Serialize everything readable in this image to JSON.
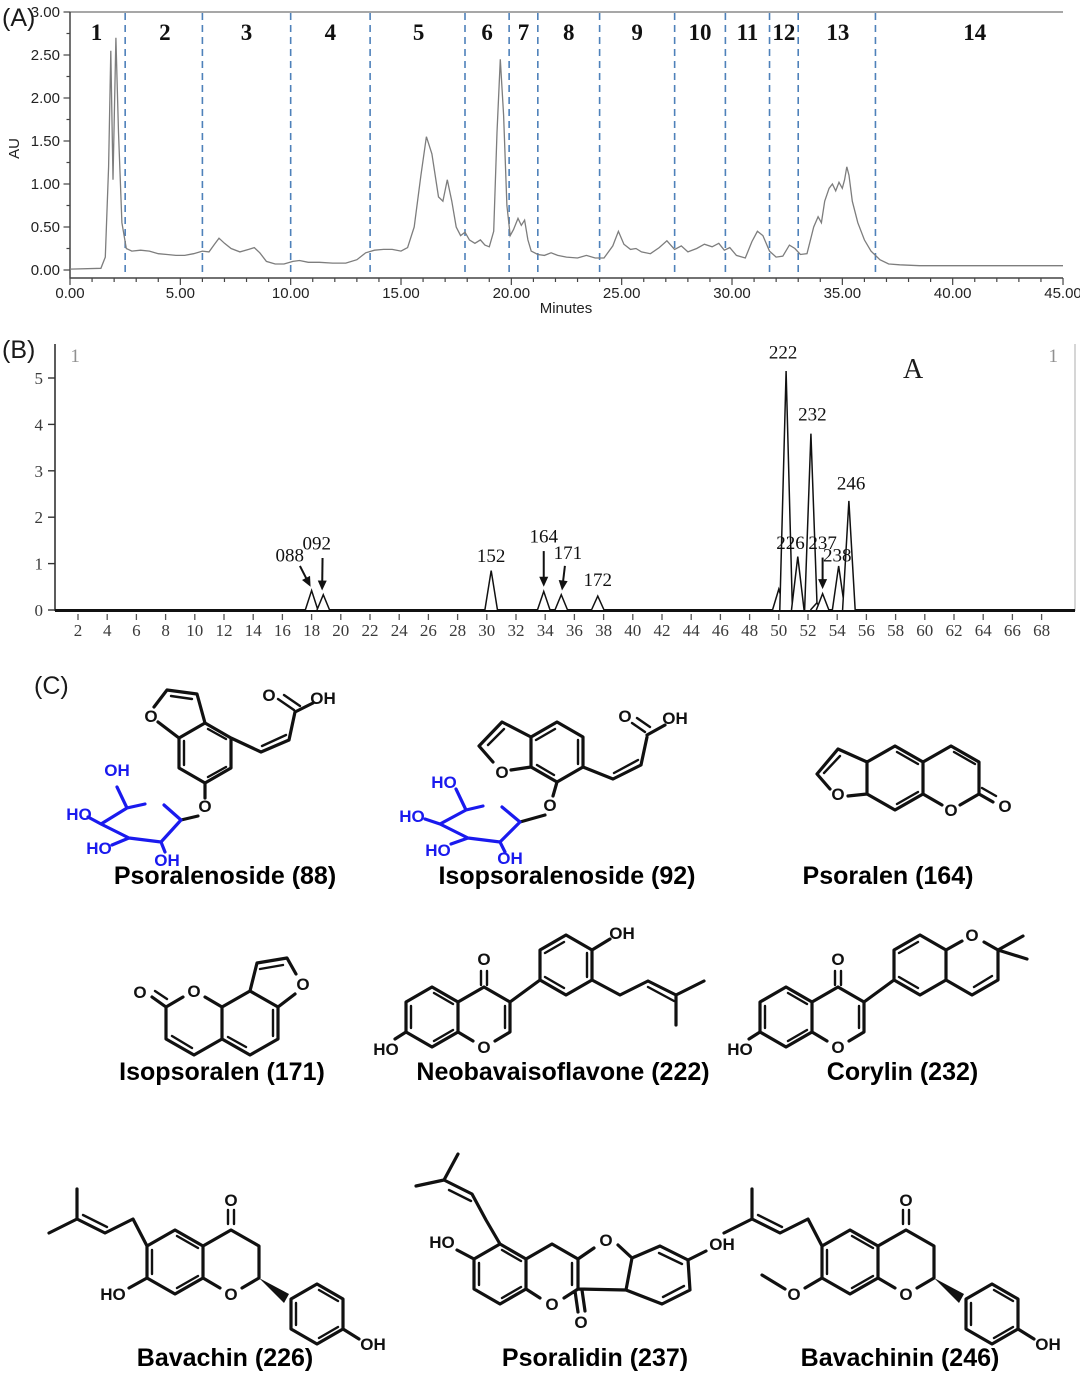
{
  "panels": {
    "a_label": "(A)",
    "b_label": "(B)",
    "c_label": "(C)"
  },
  "panel_a": {
    "xlabel": "Minutes",
    "ylabel": "AU"
  },
  "colors": {
    "divider_blue": "#4e81ba",
    "structure_blue": "#1a1aee",
    "trace_gray": "#7d7d7d"
  },
  "chart_data": [
    {
      "type": "line",
      "panel": "A",
      "title": "",
      "xlabel": "Minutes",
      "ylabel": "AU",
      "xlim": [
        0,
        45
      ],
      "ylim": [
        0,
        3
      ],
      "x_tick_step": 5,
      "y_tick_step": 0.5,
      "grid": false,
      "fraction_dividers_min": [
        2.5,
        6.0,
        10.0,
        13.6,
        17.9,
        19.9,
        21.2,
        24.0,
        27.4,
        29.7,
        31.7,
        33.0,
        36.5
      ],
      "fractions": [
        {
          "label": "1",
          "x": 1.2
        },
        {
          "label": "2",
          "x": 4.3
        },
        {
          "label": "3",
          "x": 8.0
        },
        {
          "label": "4",
          "x": 11.8
        },
        {
          "label": "5",
          "x": 15.8
        },
        {
          "label": "6",
          "x": 18.9
        },
        {
          "label": "7",
          "x": 20.55
        },
        {
          "label": "8",
          "x": 22.6
        },
        {
          "label": "9",
          "x": 25.7
        },
        {
          "label": "10",
          "x": 28.55
        },
        {
          "label": "11",
          "x": 30.7
        },
        {
          "label": "12",
          "x": 32.35
        },
        {
          "label": "13",
          "x": 34.8
        },
        {
          "label": "14",
          "x": 41.0
        }
      ],
      "trace": [
        [
          0,
          0.01
        ],
        [
          1.4,
          0.02
        ],
        [
          1.6,
          0.15
        ],
        [
          1.75,
          1.2
        ],
        [
          1.85,
          2.55
        ],
        [
          1.95,
          1.05
        ],
        [
          2.08,
          2.7
        ],
        [
          2.2,
          1.6
        ],
        [
          2.35,
          0.55
        ],
        [
          2.55,
          0.25
        ],
        [
          2.8,
          0.22
        ],
        [
          3.2,
          0.23
        ],
        [
          3.6,
          0.22
        ],
        [
          4.0,
          0.19
        ],
        [
          4.4,
          0.18
        ],
        [
          4.8,
          0.17
        ],
        [
          5.2,
          0.17
        ],
        [
          5.6,
          0.19
        ],
        [
          6.0,
          0.22
        ],
        [
          6.3,
          0.21
        ],
        [
          6.55,
          0.3
        ],
        [
          6.75,
          0.37
        ],
        [
          7.0,
          0.31
        ],
        [
          7.3,
          0.25
        ],
        [
          7.7,
          0.21
        ],
        [
          8.1,
          0.24
        ],
        [
          8.35,
          0.26
        ],
        [
          8.6,
          0.2
        ],
        [
          8.9,
          0.1
        ],
        [
          9.3,
          0.07
        ],
        [
          9.7,
          0.07
        ],
        [
          10.1,
          0.1
        ],
        [
          10.4,
          0.11
        ],
        [
          10.8,
          0.09
        ],
        [
          11.3,
          0.09
        ],
        [
          11.9,
          0.08
        ],
        [
          12.5,
          0.08
        ],
        [
          13.0,
          0.12
        ],
        [
          13.4,
          0.2
        ],
        [
          13.8,
          0.23
        ],
        [
          14.2,
          0.24
        ],
        [
          14.6,
          0.24
        ],
        [
          15.0,
          0.22
        ],
        [
          15.3,
          0.26
        ],
        [
          15.6,
          0.5
        ],
        [
          15.9,
          1.1
        ],
        [
          16.15,
          1.55
        ],
        [
          16.4,
          1.35
        ],
        [
          16.7,
          0.85
        ],
        [
          16.9,
          0.8
        ],
        [
          17.1,
          1.05
        ],
        [
          17.3,
          0.8
        ],
        [
          17.5,
          0.5
        ],
        [
          17.7,
          0.4
        ],
        [
          17.9,
          0.44
        ],
        [
          18.1,
          0.35
        ],
        [
          18.35,
          0.31
        ],
        [
          18.6,
          0.35
        ],
        [
          18.8,
          0.29
        ],
        [
          19.0,
          0.27
        ],
        [
          19.2,
          0.45
        ],
        [
          19.35,
          1.6
        ],
        [
          19.5,
          2.45
        ],
        [
          19.65,
          1.8
        ],
        [
          19.8,
          0.75
        ],
        [
          19.95,
          0.4
        ],
        [
          20.1,
          0.47
        ],
        [
          20.3,
          0.6
        ],
        [
          20.45,
          0.52
        ],
        [
          20.6,
          0.58
        ],
        [
          20.75,
          0.35
        ],
        [
          20.9,
          0.22
        ],
        [
          21.2,
          0.18
        ],
        [
          21.5,
          0.17
        ],
        [
          21.8,
          0.2
        ],
        [
          22.1,
          0.17
        ],
        [
          22.5,
          0.15
        ],
        [
          23.0,
          0.14
        ],
        [
          23.4,
          0.17
        ],
        [
          23.8,
          0.14
        ],
        [
          24.2,
          0.14
        ],
        [
          24.6,
          0.28
        ],
        [
          24.85,
          0.45
        ],
        [
          25.1,
          0.3
        ],
        [
          25.4,
          0.24
        ],
        [
          25.65,
          0.25
        ],
        [
          25.9,
          0.21
        ],
        [
          26.3,
          0.19
        ],
        [
          26.7,
          0.26
        ],
        [
          27.05,
          0.34
        ],
        [
          27.4,
          0.24
        ],
        [
          27.7,
          0.28
        ],
        [
          28.0,
          0.21
        ],
        [
          28.4,
          0.25
        ],
        [
          28.75,
          0.3
        ],
        [
          29.1,
          0.27
        ],
        [
          29.4,
          0.31
        ],
        [
          29.65,
          0.23
        ],
        [
          29.9,
          0.26
        ],
        [
          30.2,
          0.17
        ],
        [
          30.6,
          0.14
        ],
        [
          30.9,
          0.33
        ],
        [
          31.15,
          0.45
        ],
        [
          31.4,
          0.4
        ],
        [
          31.7,
          0.22
        ],
        [
          32.0,
          0.15
        ],
        [
          32.3,
          0.16
        ],
        [
          32.6,
          0.29
        ],
        [
          32.85,
          0.25
        ],
        [
          33.1,
          0.18
        ],
        [
          33.4,
          0.19
        ],
        [
          33.7,
          0.5
        ],
        [
          33.9,
          0.62
        ],
        [
          34.05,
          0.55
        ],
        [
          34.2,
          0.8
        ],
        [
          34.4,
          0.95
        ],
        [
          34.55,
          1.0
        ],
        [
          34.7,
          0.92
        ],
        [
          34.85,
          1.02
        ],
        [
          35.0,
          0.95
        ],
        [
          35.1,
          1.05
        ],
        [
          35.2,
          1.2
        ],
        [
          35.3,
          1.1
        ],
        [
          35.45,
          0.8
        ],
        [
          35.7,
          0.55
        ],
        [
          36.0,
          0.35
        ],
        [
          36.3,
          0.22
        ],
        [
          36.7,
          0.12
        ],
        [
          37.1,
          0.07
        ],
        [
          37.6,
          0.06
        ],
        [
          38.5,
          0.05
        ],
        [
          40,
          0.05
        ],
        [
          42,
          0.05
        ],
        [
          45,
          0.05
        ]
      ]
    },
    {
      "type": "line",
      "panel": "B",
      "title": "",
      "xlabel": "",
      "ylabel": "",
      "xlim": [
        0,
        70
      ],
      "ylim": [
        0,
        5.5
      ],
      "x_tick_min": 2,
      "x_tick_max": 68,
      "x_tick_step": 2,
      "y_ticks": [
        0,
        1,
        2,
        3,
        4,
        5
      ],
      "grid": false,
      "corner_marks": [
        {
          "text": "1",
          "x": 1.8,
          "y": 5.35,
          "color": "#909090",
          "size": 19
        },
        {
          "text": "A",
          "x": 59.2,
          "y": 5.0,
          "color": "#1a1a1a",
          "size": 28
        },
        {
          "text": "1",
          "x": 68.8,
          "y": 5.35,
          "color": "#909090",
          "size": 19
        }
      ],
      "peaks": [
        {
          "label": "088",
          "x": 18.0,
          "h": 0.42
        },
        {
          "label": "092",
          "x": 18.8,
          "h": 0.33
        },
        {
          "label": "152",
          "x": 30.3,
          "h": 0.85
        },
        {
          "label": "164",
          "x": 33.9,
          "h": 0.4
        },
        {
          "label": "171",
          "x": 35.1,
          "h": 0.33
        },
        {
          "label": "172",
          "x": 37.6,
          "h": 0.3
        },
        {
          "label": "",
          "x": 50.0,
          "h": 0.45
        },
        {
          "label": "222",
          "x": 50.5,
          "h": 5.15
        },
        {
          "label": "226",
          "x": 51.3,
          "h": 1.15
        },
        {
          "label": "232",
          "x": 52.2,
          "h": 3.8
        },
        {
          "label": "",
          "x": 52.6,
          "h": 0.15
        },
        {
          "label": "237",
          "x": 53.0,
          "h": 0.35
        },
        {
          "label": "238",
          "x": 54.1,
          "h": 0.95
        },
        {
          "label": "246",
          "x": 54.8,
          "h": 2.35
        }
      ],
      "peak_labels": [
        {
          "text": "088",
          "x": 16.5,
          "y": 1.05,
          "arrow": [
            17.2,
            0.95,
            17.93,
            0.5
          ]
        },
        {
          "text": "092",
          "x": 18.35,
          "y": 1.3,
          "arrow": [
            18.75,
            1.12,
            18.72,
            0.42
          ]
        },
        {
          "text": "152",
          "x": 30.3,
          "y": 1.03
        },
        {
          "text": "164",
          "x": 33.9,
          "y": 1.45,
          "arrow": [
            33.9,
            1.27,
            33.9,
            0.5
          ]
        },
        {
          "text": "171",
          "x": 35.55,
          "y": 1.1,
          "arrow": [
            35.35,
            0.95,
            35.15,
            0.42
          ]
        },
        {
          "text": "172",
          "x": 37.6,
          "y": 0.52
        },
        {
          "text": "222",
          "x": 50.3,
          "y": 5.42
        },
        {
          "text": "226",
          "x": 50.8,
          "y": 1.32
        },
        {
          "text": "232",
          "x": 52.3,
          "y": 4.08
        },
        {
          "text": "237",
          "x": 53.0,
          "y": 1.32,
          "arrow": [
            53.0,
            1.13,
            53.0,
            0.45
          ]
        },
        {
          "text": "238",
          "x": 54.0,
          "y": 1.05
        },
        {
          "text": "246",
          "x": 54.95,
          "y": 2.6
        }
      ]
    }
  ],
  "compounds": [
    {
      "caption": "Psoralenoside (88)",
      "atoms": [
        [
          "O",
          96,
          54
        ],
        [
          "O",
          214,
          33
        ],
        [
          "OH",
          268,
          36
        ],
        [
          "O",
          150,
          144
        ],
        [
          "OH",
          62,
          108,
          1
        ],
        [
          "HO",
          24,
          152,
          1
        ],
        [
          "HO",
          44,
          186,
          1
        ],
        [
          "OH",
          112,
          198,
          1
        ]
      ]
    },
    {
      "caption": "Isopsoralenoside (92)",
      "atoms": [
        [
          "O",
          140,
          106
        ],
        [
          "O",
          263,
          50
        ],
        [
          "OH",
          313,
          52
        ],
        [
          "O",
          188,
          139
        ],
        [
          "HO",
          82,
          116,
          1
        ],
        [
          "HO",
          50,
          150,
          1
        ],
        [
          "HO",
          76,
          184,
          1
        ],
        [
          "OH",
          148,
          192,
          1
        ]
      ]
    },
    {
      "caption": "Psoralen (164)",
      "atoms": [
        [
          "O",
          103,
          112
        ],
        [
          "O",
          216,
          128
        ],
        [
          "O",
          270,
          124
        ]
      ]
    },
    {
      "caption": "Isopsoralen (171)",
      "atoms": [
        [
          "O",
          144,
          69
        ],
        [
          "O",
          90,
          70
        ],
        [
          "O",
          253,
          62
        ]
      ]
    },
    {
      "caption": "Neobavaisoflavone (222)",
      "atoms": [
        [
          "O",
          116,
          62
        ],
        [
          "O",
          116,
          150
        ],
        [
          "OH",
          254,
          36
        ],
        [
          "HO",
          18,
          152
        ]
      ]
    },
    {
      "caption": "Corylin (232)",
      "atoms": [
        [
          "O",
          116,
          62
        ],
        [
          "O",
          116,
          150
        ],
        [
          "O",
          250,
          38
        ],
        [
          "HO",
          18,
          152
        ]
      ]
    },
    {
      "caption": "Bavachin (226)",
      "atoms": [
        [
          "O",
          216,
          64
        ],
        [
          "O",
          216,
          158
        ],
        [
          "HO",
          98,
          158
        ],
        [
          "OH",
          358,
          208
        ]
      ]
    },
    {
      "caption": "Psoralidin (237)",
      "atoms": [
        [
          "HO",
          42,
          124
        ],
        [
          "O",
          152,
          186
        ],
        [
          "O",
          181,
          204
        ],
        [
          "O",
          206,
          122
        ],
        [
          "OH",
          322,
          126
        ]
      ]
    },
    {
      "caption": "Bavachinin (246)",
      "atoms": [
        [
          "O",
          216,
          64
        ],
        [
          "O",
          216,
          158
        ],
        [
          "O",
          104,
          158
        ],
        [
          "OH",
          358,
          208
        ]
      ]
    }
  ]
}
